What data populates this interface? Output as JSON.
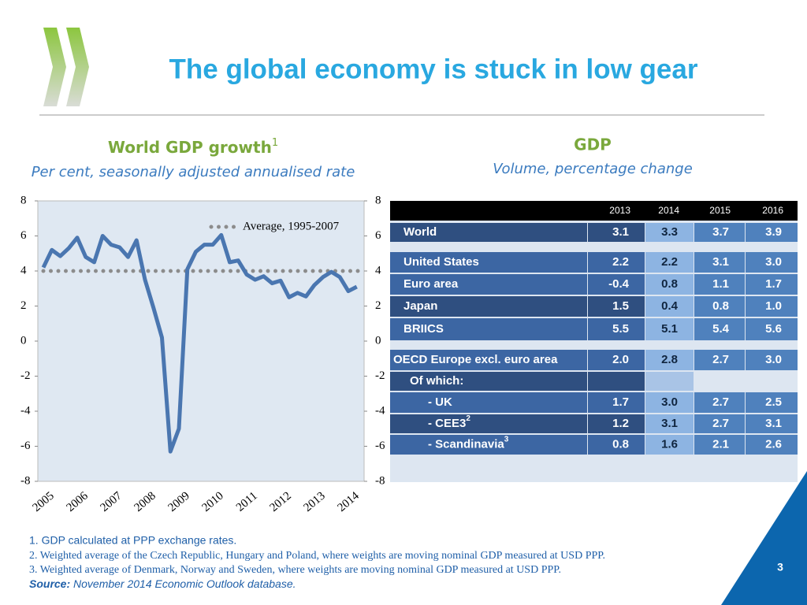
{
  "slide_title": "The global economy is stuck in low gear",
  "chart_data": {
    "type": "line",
    "title": "World GDP growth",
    "title_note": "1",
    "subtitle": "Per cent, seasonally adjusted annualised rate",
    "categories": [
      "2005",
      null,
      null,
      null,
      "2006",
      null,
      null,
      null,
      "2007",
      null,
      null,
      null,
      "2008",
      null,
      null,
      null,
      "2009",
      null,
      null,
      null,
      "2010",
      null,
      null,
      null,
      "2011",
      null,
      null,
      null,
      "2012",
      null,
      null,
      null,
      "2013",
      null,
      null,
      null,
      "2014",
      null
    ],
    "series": [
      {
        "name": "World GDP growth",
        "color": "#4a76b0",
        "values": [
          4.2,
          5.2,
          4.85,
          5.3,
          5.9,
          4.8,
          4.5,
          6.0,
          5.5,
          5.35,
          4.8,
          5.75,
          3.5,
          1.9,
          0.2,
          -6.3,
          -5.0,
          4.1,
          5.1,
          5.5,
          5.5,
          6.05,
          4.5,
          4.6,
          3.8,
          3.5,
          3.7,
          3.3,
          3.45,
          2.5,
          2.75,
          2.55,
          3.2,
          3.65,
          3.95,
          3.65,
          2.85,
          3.1
        ]
      }
    ],
    "reference_line": {
      "value": 4,
      "label": "Average, 1995-2007",
      "color": "#8c8c8c"
    },
    "ylim": [
      -8,
      8
    ],
    "yticks": [
      -8,
      -6,
      -4,
      -2,
      0,
      2,
      4,
      6,
      8
    ],
    "y2lim": [
      -8,
      8
    ],
    "y2ticks": [
      -8,
      -6,
      -4,
      -2,
      0,
      2,
      4,
      6,
      8
    ]
  },
  "table": {
    "title": "GDP",
    "subtitle": "Volume, percentage change",
    "columns": [
      "2013",
      "2014",
      "2015",
      "2016"
    ],
    "rows": [
      {
        "label": "World",
        "values": [
          "3.1",
          "3.3",
          "3.7",
          "3.9"
        ]
      },
      {
        "label": "United States",
        "values": [
          "2.2",
          "2.2",
          "3.1",
          "3.0"
        ]
      },
      {
        "label": "Euro area",
        "values": [
          "-0.4",
          "0.8",
          "1.1",
          "1.7"
        ]
      },
      {
        "label": "Japan",
        "values": [
          "1.5",
          "0.4",
          "0.8",
          "1.0"
        ]
      },
      {
        "label": "BRIICS",
        "values": [
          "5.5",
          "5.1",
          "5.4",
          "5.6"
        ]
      },
      {
        "label": "OECD Europe excl. euro area",
        "values": [
          "2.0",
          "2.8",
          "2.7",
          "3.0"
        ]
      },
      {
        "label": "Of which:",
        "values": []
      },
      {
        "label": "- UK",
        "values": [
          "1.7",
          "3.0",
          "2.7",
          "2.5"
        ]
      },
      {
        "label": "- CEE3",
        "note": "2",
        "values": [
          "1.2",
          "3.1",
          "2.7",
          "3.1"
        ]
      },
      {
        "label": "- Scandinavia",
        "note": "3",
        "values": [
          "0.8",
          "1.6",
          "2.1",
          "2.6"
        ]
      }
    ]
  },
  "footnotes": [
    "1.   GDP calculated at PPP exchange rates.",
    "2.   Weighted average of the Czech Republic, Hungary and Poland, where weights are moving nominal GDP measured at USD PPP.",
    "3. Weighted average of Denmark, Norway and Sweden, where weights are moving nominal GDP measured at USD PPP."
  ],
  "source": {
    "label": "Source:",
    "text": "November 2014 Economic Outlook database."
  },
  "page_number": "3"
}
